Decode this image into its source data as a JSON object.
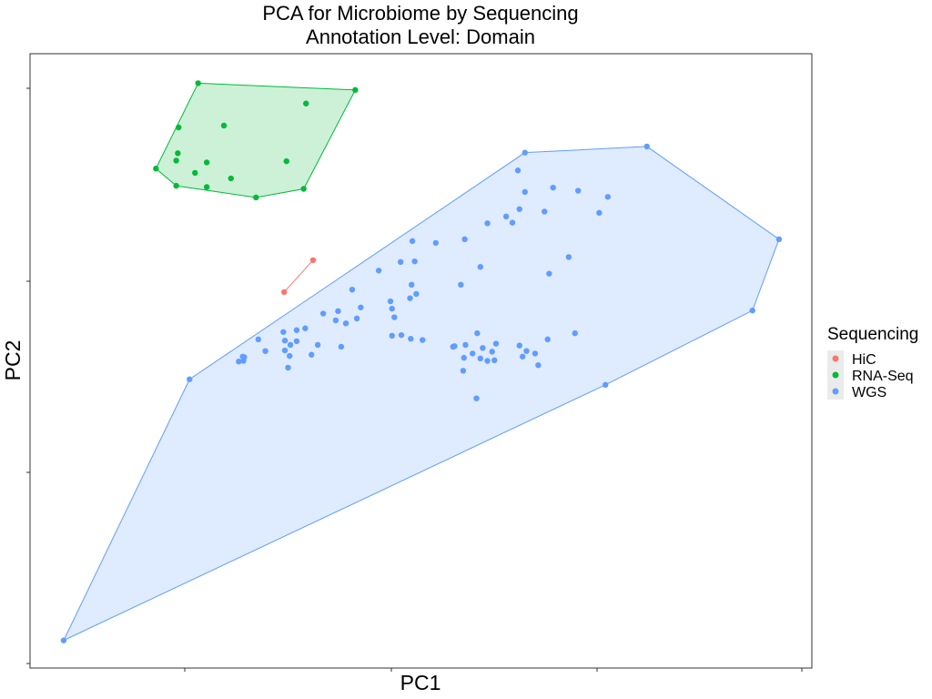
{
  "chart_data": {
    "type": "scatter",
    "title": "PCA for Microbiome by Sequencing",
    "subtitle": "Annotation Level: Domain",
    "xlabel": "PC1",
    "ylabel": "PC2",
    "xlim": [
      0,
      100
    ],
    "ylim": [
      0,
      100
    ],
    "grid": false,
    "legend": {
      "title": "Sequencing",
      "position": "right",
      "entries": [
        "HiC",
        "RNA-Seq",
        "WGS"
      ]
    },
    "series": [
      {
        "name": "HiC",
        "color": "#F8766D",
        "hull": true,
        "points": [
          [
            32.5,
            61.2
          ],
          [
            36.2,
            66.4
          ]
        ]
      },
      {
        "name": "RNA-Seq",
        "color": "#00BA38",
        "hull": true,
        "points": [
          [
            21.5,
            95.2
          ],
          [
            41.6,
            94.1
          ],
          [
            16.1,
            81.3
          ],
          [
            18.7,
            78.5
          ],
          [
            28.9,
            76.6
          ],
          [
            35.0,
            78.0
          ],
          [
            24.8,
            88.3
          ],
          [
            35.3,
            91.9
          ],
          [
            19.0,
            88.0
          ],
          [
            18.9,
            83.8
          ],
          [
            18.7,
            82.6
          ],
          [
            22.6,
            82.3
          ],
          [
            21.1,
            80.6
          ],
          [
            32.8,
            82.5
          ],
          [
            25.7,
            79.7
          ],
          [
            22.6,
            78.3
          ]
        ]
      },
      {
        "name": "WGS",
        "color": "#619CFF",
        "hull": true,
        "points": [
          [
            4.3,
            4.5
          ],
          [
            20.4,
            47.0
          ],
          [
            63.3,
            83.9
          ],
          [
            78.9,
            84.9
          ],
          [
            95.8,
            69.8
          ],
          [
            92.4,
            58.2
          ],
          [
            73.6,
            46.1
          ],
          [
            62.4,
            81.0
          ],
          [
            63.3,
            77.5
          ],
          [
            66.9,
            78.2
          ],
          [
            70.1,
            77.7
          ],
          [
            73.9,
            76.7
          ],
          [
            72.8,
            74.1
          ],
          [
            60.9,
            73.5
          ],
          [
            62.6,
            74.7
          ],
          [
            65.8,
            74.3
          ],
          [
            58.5,
            72.4
          ],
          [
            61.7,
            72.5
          ],
          [
            48.9,
            69.5
          ],
          [
            51.9,
            69.2
          ],
          [
            55.6,
            69.8
          ],
          [
            68.9,
            66.9
          ],
          [
            66.4,
            64.2
          ],
          [
            57.6,
            65.3
          ],
          [
            44.6,
            64.7
          ],
          [
            47.4,
            66.1
          ],
          [
            49.2,
            66.2
          ],
          [
            55.1,
            62.4
          ],
          [
            48.8,
            62.4
          ],
          [
            49.4,
            60.9
          ],
          [
            48.6,
            60.2
          ],
          [
            46.1,
            59.7
          ],
          [
            46.3,
            58.5
          ],
          [
            41.2,
            61.6
          ],
          [
            42.3,
            58.7
          ],
          [
            41.8,
            56.9
          ],
          [
            46.6,
            57.1
          ],
          [
            39.4,
            58.1
          ],
          [
            37.5,
            57.7
          ],
          [
            39.1,
            56.6
          ],
          [
            40.4,
            56.1
          ],
          [
            34.1,
            55.0
          ],
          [
            35.2,
            55.3
          ],
          [
            32.4,
            54.7
          ],
          [
            34.1,
            53.2
          ],
          [
            32.6,
            53.3
          ],
          [
            33.3,
            52.6
          ],
          [
            32.6,
            51.7
          ],
          [
            36.8,
            52.6
          ],
          [
            39.8,
            52.3
          ],
          [
            33.2,
            50.8
          ],
          [
            29.2,
            53.5
          ],
          [
            30.1,
            51.6
          ],
          [
            27.4,
            50.6
          ],
          [
            27.3,
            50.0
          ],
          [
            26.7,
            49.9
          ],
          [
            27.2,
            50.7
          ],
          [
            33.0,
            48.9
          ],
          [
            36.0,
            51.0
          ],
          [
            46.3,
            54.1
          ],
          [
            47.5,
            54.2
          ],
          [
            48.7,
            53.6
          ],
          [
            50.2,
            53.4
          ],
          [
            57.2,
            54.5
          ],
          [
            54.1,
            52.3
          ],
          [
            55.7,
            52.6
          ],
          [
            56.6,
            51.2
          ],
          [
            57.6,
            50.4
          ],
          [
            57.9,
            52.1
          ],
          [
            59.1,
            51.5
          ],
          [
            54.3,
            52.4
          ],
          [
            55.5,
            50.5
          ],
          [
            58.5,
            50.0
          ],
          [
            59.4,
            50.1
          ],
          [
            59.6,
            52.8
          ],
          [
            62.6,
            52.5
          ],
          [
            63.5,
            51.6
          ],
          [
            63.0,
            50.7
          ],
          [
            66.2,
            53.5
          ],
          [
            65.0,
            49.3
          ],
          [
            69.7,
            54.5
          ],
          [
            55.4,
            48.4
          ],
          [
            57.1,
            43.9
          ],
          [
            64.6,
            51.2
          ]
        ]
      }
    ]
  }
}
